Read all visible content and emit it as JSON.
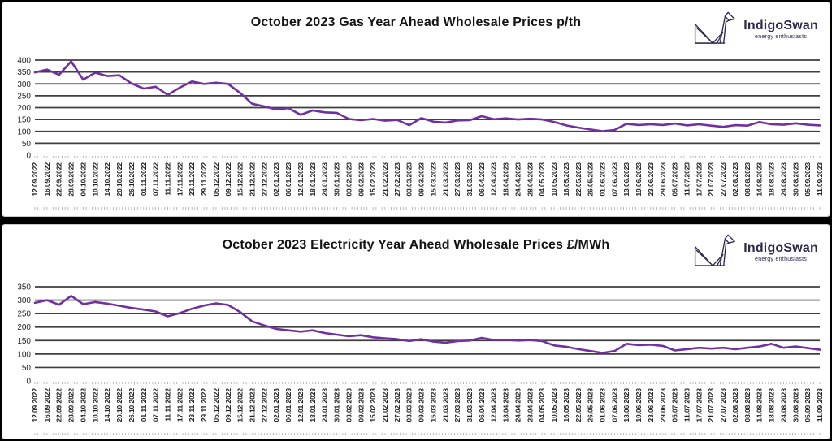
{
  "branding": {
    "name": "IndigoSwan",
    "tagline": "energy enthusiasts",
    "color": "#2d2a4c"
  },
  "chart_data": [
    {
      "type": "line",
      "title": "October 2023 Gas Year Ahead Wholesale Prices p/th",
      "ylabel": "",
      "xlabel": "",
      "ylim": [
        0,
        400
      ],
      "y_tick_step": 50,
      "grid": true,
      "legend": "none",
      "line_color": "#7030A0",
      "gridline_color": "#3f3f3f",
      "tick_color": "#a9a9a9",
      "categories": [
        "12.09.2022",
        "16.09.2022",
        "22.09.2022",
        "28.09.2022",
        "04.10.2022",
        "10.10.2022",
        "14.10.2022",
        "20.10.2022",
        "26.10.2022",
        "01.11.2022",
        "07.11.2022",
        "11.11.2022",
        "17.11.2022",
        "23.11.2022",
        "29.11.2022",
        "05.12.2022",
        "09.12.2022",
        "15.12.2022",
        "21.12.2022",
        "27.12.2022",
        "02.01.2023",
        "06.01.2023",
        "12.01.2023",
        "18.01.2023",
        "24.01.2023",
        "30.01.2023",
        "03.02.2023",
        "09.02.2023",
        "15.02.2023",
        "21.02.2023",
        "27.02.2023",
        "03.03.2023",
        "09.03.2023",
        "15.03.2023",
        "21.03.2023",
        "27.03.2023",
        "31.03.2023",
        "06.04.2023",
        "12.04.2023",
        "18.04.2023",
        "24.04.2023",
        "28.04.2023",
        "04.05.2023",
        "10.05.2023",
        "16.05.2023",
        "22.05.2023",
        "26.05.2023",
        "01.06.2023",
        "07.06.2023",
        "13.06.2023",
        "19.06.2023",
        "23.06.2023",
        "29.06.2023",
        "05.07.2023",
        "11.07.2023",
        "17.07.2023",
        "21.07.2023",
        "27.07.2023",
        "02.08.2023",
        "08.08.2023",
        "14.08.2023",
        "18.08.2023",
        "24.08.2023",
        "30.08.2023",
        "05.09.2023",
        "11.09.2023"
      ],
      "values": [
        348,
        360,
        338,
        395,
        318,
        347,
        333,
        336,
        302,
        280,
        288,
        254,
        284,
        310,
        300,
        305,
        300,
        262,
        216,
        205,
        192,
        198,
        170,
        188,
        180,
        178,
        152,
        147,
        152,
        145,
        148,
        126,
        156,
        141,
        137,
        146,
        147,
        164,
        151,
        155,
        150,
        153,
        150,
        140,
        125,
        116,
        108,
        101,
        106,
        132,
        127,
        130,
        127,
        133,
        125,
        130,
        124,
        119,
        126,
        124,
        139,
        130,
        128,
        134,
        128,
        125
      ]
    },
    {
      "type": "line",
      "title": "October 2023 Electricity Year Ahead Wholesale Prices £/MWh",
      "ylabel": "",
      "xlabel": "",
      "ylim": [
        0,
        350
      ],
      "y_tick_step": 50,
      "grid": true,
      "legend": "none",
      "line_color": "#7030A0",
      "gridline_color": "#3f3f3f",
      "tick_color": "#a9a9a9",
      "categories": [
        "12.09.2022",
        "16.09.2022",
        "22.09.2022",
        "28.09.2022",
        "04.10.2022",
        "10.10.2022",
        "14.10.2022",
        "20.10.2022",
        "26.10.2022",
        "01.11.2022",
        "07.11.2022",
        "11.11.2022",
        "17.11.2022",
        "23.11.2022",
        "29.11.2022",
        "05.12.2022",
        "09.12.2022",
        "15.12.2022",
        "21.12.2022",
        "27.12.2022",
        "02.01.2023",
        "06.01.2023",
        "12.01.2023",
        "18.01.2023",
        "24.01.2023",
        "30.01.2023",
        "03.02.2023",
        "09.02.2023",
        "15.02.2023",
        "21.02.2023",
        "27.02.2023",
        "03.03.2023",
        "09.03.2023",
        "15.03.2023",
        "21.03.2023",
        "27.03.2023",
        "31.03.2023",
        "06.04.2023",
        "12.04.2023",
        "18.04.2023",
        "24.04.2023",
        "28.04.2023",
        "04.05.2023",
        "10.05.2023",
        "16.05.2023",
        "22.05.2023",
        "26.05.2023",
        "01.06.2023",
        "07.06.2023",
        "13.06.2023",
        "19.06.2023",
        "23.06.2023",
        "29.06.2023",
        "05.07.2023",
        "11.07.2023",
        "17.07.2023",
        "21.07.2023",
        "27.07.2023",
        "02.08.2023",
        "08.08.2023",
        "14.08.2023",
        "18.08.2023",
        "24.08.2023",
        "30.08.2023",
        "05.09.2023",
        "11.09.2023"
      ],
      "values": [
        290,
        300,
        283,
        316,
        285,
        293,
        287,
        279,
        271,
        265,
        258,
        240,
        252,
        268,
        280,
        288,
        282,
        256,
        221,
        206,
        193,
        188,
        183,
        188,
        178,
        172,
        166,
        170,
        162,
        158,
        155,
        148,
        155,
        146,
        142,
        148,
        150,
        160,
        152,
        153,
        150,
        152,
        148,
        132,
        127,
        118,
        111,
        104,
        111,
        138,
        133,
        135,
        130,
        113,
        118,
        123,
        120,
        123,
        118,
        123,
        128,
        138,
        123,
        128,
        122,
        116
      ]
    }
  ]
}
